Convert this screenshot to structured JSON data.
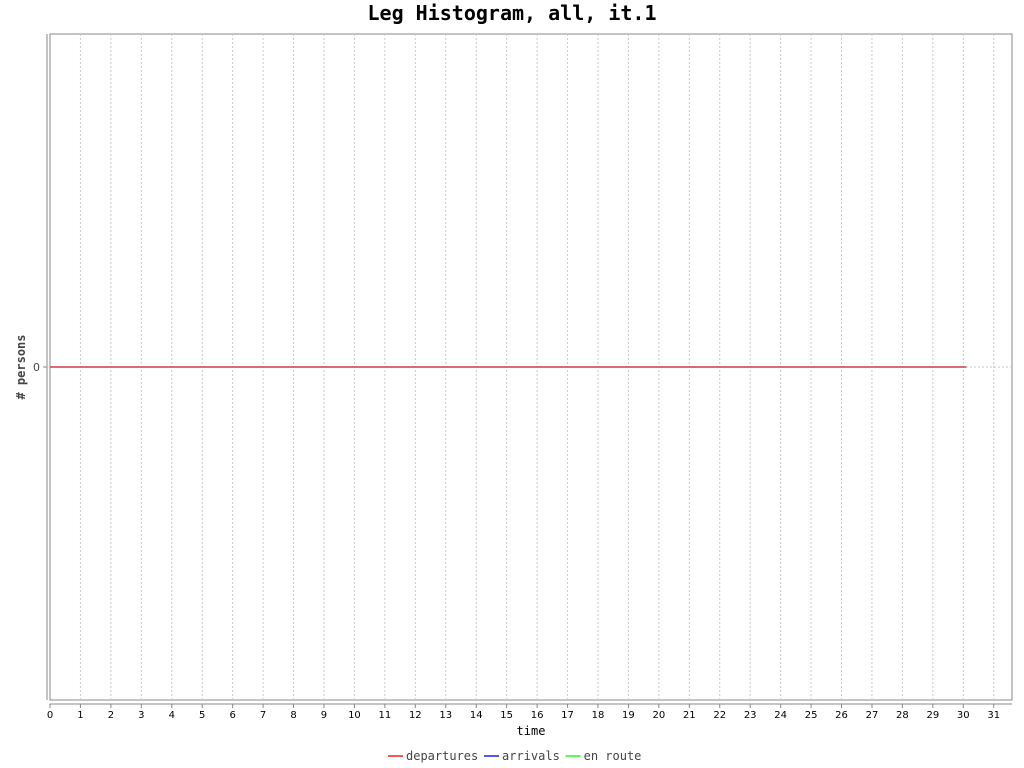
{
  "chart_data": {
    "type": "line",
    "title": "Leg Histogram, all, it.1",
    "xlabel": "time",
    "ylabel": "# persons",
    "xlim": [
      0,
      31.6
    ],
    "ylim": [
      -1,
      1
    ],
    "x_ticks": [
      "0",
      "1",
      "2",
      "3",
      "4",
      "5",
      "6",
      "7",
      "8",
      "9",
      "10",
      "11",
      "12",
      "13",
      "14",
      "15",
      "16",
      "17",
      "18",
      "19",
      "20",
      "21",
      "22",
      "23",
      "24",
      "25",
      "26",
      "27",
      "28",
      "29",
      "30",
      "31"
    ],
    "y_ticks": [
      "0"
    ],
    "grid": true,
    "legend_position": "bottom-center",
    "x": [
      0,
      30.1
    ],
    "series": [
      {
        "name": "departures",
        "color": "#ff5555",
        "values": [
          0,
          0
        ]
      },
      {
        "name": "arrivals",
        "color": "#5555ff",
        "values": [
          0,
          0
        ]
      },
      {
        "name": "en route",
        "color": "#55ff55",
        "values": [
          0,
          0
        ]
      }
    ]
  }
}
